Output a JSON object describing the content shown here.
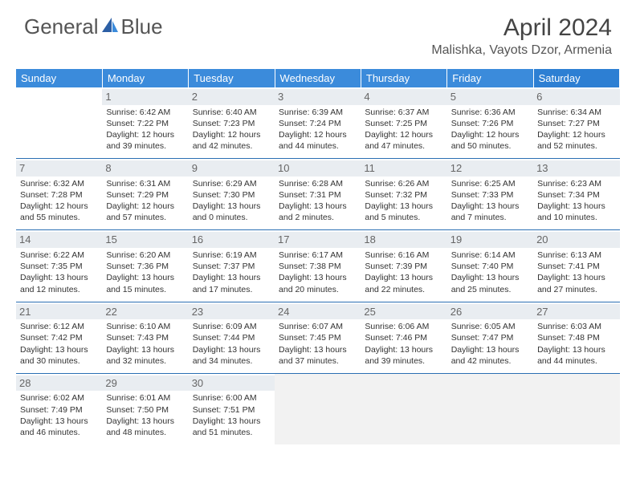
{
  "brand": {
    "pre": "General",
    "post": "Blue"
  },
  "title": "April 2024",
  "location": "Malishka, Vayots Dzor, Armenia",
  "weekdays": [
    "Sunday",
    "Monday",
    "Tuesday",
    "Wednesday",
    "Thursday",
    "Friday",
    "Saturday"
  ],
  "colors": {
    "header_bg": "#3b8bdb",
    "saturday_bg": "#2d7fd3",
    "row_border": "#2a6fb3",
    "daynum_bg": "#e9edf1",
    "logo_accent": "#2c5fa5"
  },
  "start_offset": 1,
  "days": [
    {
      "n": 1,
      "sr": "6:42 AM",
      "ss": "7:22 PM",
      "dl": "12 hours and 39 minutes."
    },
    {
      "n": 2,
      "sr": "6:40 AM",
      "ss": "7:23 PM",
      "dl": "12 hours and 42 minutes."
    },
    {
      "n": 3,
      "sr": "6:39 AM",
      "ss": "7:24 PM",
      "dl": "12 hours and 44 minutes."
    },
    {
      "n": 4,
      "sr": "6:37 AM",
      "ss": "7:25 PM",
      "dl": "12 hours and 47 minutes."
    },
    {
      "n": 5,
      "sr": "6:36 AM",
      "ss": "7:26 PM",
      "dl": "12 hours and 50 minutes."
    },
    {
      "n": 6,
      "sr": "6:34 AM",
      "ss": "7:27 PM",
      "dl": "12 hours and 52 minutes."
    },
    {
      "n": 7,
      "sr": "6:32 AM",
      "ss": "7:28 PM",
      "dl": "12 hours and 55 minutes."
    },
    {
      "n": 8,
      "sr": "6:31 AM",
      "ss": "7:29 PM",
      "dl": "12 hours and 57 minutes."
    },
    {
      "n": 9,
      "sr": "6:29 AM",
      "ss": "7:30 PM",
      "dl": "13 hours and 0 minutes."
    },
    {
      "n": 10,
      "sr": "6:28 AM",
      "ss": "7:31 PM",
      "dl": "13 hours and 2 minutes."
    },
    {
      "n": 11,
      "sr": "6:26 AM",
      "ss": "7:32 PM",
      "dl": "13 hours and 5 minutes."
    },
    {
      "n": 12,
      "sr": "6:25 AM",
      "ss": "7:33 PM",
      "dl": "13 hours and 7 minutes."
    },
    {
      "n": 13,
      "sr": "6:23 AM",
      "ss": "7:34 PM",
      "dl": "13 hours and 10 minutes."
    },
    {
      "n": 14,
      "sr": "6:22 AM",
      "ss": "7:35 PM",
      "dl": "13 hours and 12 minutes."
    },
    {
      "n": 15,
      "sr": "6:20 AM",
      "ss": "7:36 PM",
      "dl": "13 hours and 15 minutes."
    },
    {
      "n": 16,
      "sr": "6:19 AM",
      "ss": "7:37 PM",
      "dl": "13 hours and 17 minutes."
    },
    {
      "n": 17,
      "sr": "6:17 AM",
      "ss": "7:38 PM",
      "dl": "13 hours and 20 minutes."
    },
    {
      "n": 18,
      "sr": "6:16 AM",
      "ss": "7:39 PM",
      "dl": "13 hours and 22 minutes."
    },
    {
      "n": 19,
      "sr": "6:14 AM",
      "ss": "7:40 PM",
      "dl": "13 hours and 25 minutes."
    },
    {
      "n": 20,
      "sr": "6:13 AM",
      "ss": "7:41 PM",
      "dl": "13 hours and 27 minutes."
    },
    {
      "n": 21,
      "sr": "6:12 AM",
      "ss": "7:42 PM",
      "dl": "13 hours and 30 minutes."
    },
    {
      "n": 22,
      "sr": "6:10 AM",
      "ss": "7:43 PM",
      "dl": "13 hours and 32 minutes."
    },
    {
      "n": 23,
      "sr": "6:09 AM",
      "ss": "7:44 PM",
      "dl": "13 hours and 34 minutes."
    },
    {
      "n": 24,
      "sr": "6:07 AM",
      "ss": "7:45 PM",
      "dl": "13 hours and 37 minutes."
    },
    {
      "n": 25,
      "sr": "6:06 AM",
      "ss": "7:46 PM",
      "dl": "13 hours and 39 minutes."
    },
    {
      "n": 26,
      "sr": "6:05 AM",
      "ss": "7:47 PM",
      "dl": "13 hours and 42 minutes."
    },
    {
      "n": 27,
      "sr": "6:03 AM",
      "ss": "7:48 PM",
      "dl": "13 hours and 44 minutes."
    },
    {
      "n": 28,
      "sr": "6:02 AM",
      "ss": "7:49 PM",
      "dl": "13 hours and 46 minutes."
    },
    {
      "n": 29,
      "sr": "6:01 AM",
      "ss": "7:50 PM",
      "dl": "13 hours and 48 minutes."
    },
    {
      "n": 30,
      "sr": "6:00 AM",
      "ss": "7:51 PM",
      "dl": "13 hours and 51 minutes."
    }
  ],
  "labels": {
    "sunrise": "Sunrise:",
    "sunset": "Sunset:",
    "daylight": "Daylight:"
  }
}
